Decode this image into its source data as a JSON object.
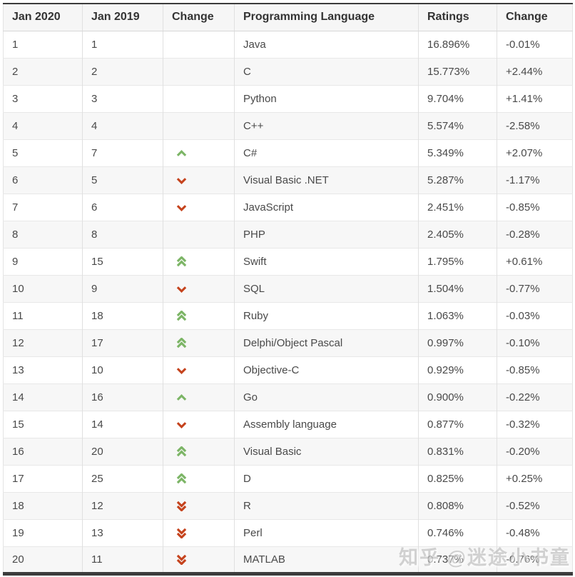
{
  "chart_data": {
    "type": "table",
    "columns": [
      "Jan 2020",
      "Jan 2019",
      "Change",
      "Programming Language",
      "Ratings",
      "Change"
    ],
    "rows": [
      {
        "jan2020": "1",
        "jan2019": "1",
        "trend": "none",
        "language": "Java",
        "rating": "16.896%",
        "change": "-0.01%"
      },
      {
        "jan2020": "2",
        "jan2019": "2",
        "trend": "none",
        "language": "C",
        "rating": "15.773%",
        "change": "+2.44%"
      },
      {
        "jan2020": "3",
        "jan2019": "3",
        "trend": "none",
        "language": "Python",
        "rating": "9.704%",
        "change": "+1.41%"
      },
      {
        "jan2020": "4",
        "jan2019": "4",
        "trend": "none",
        "language": "C++",
        "rating": "5.574%",
        "change": "-2.58%"
      },
      {
        "jan2020": "5",
        "jan2019": "7",
        "trend": "up1",
        "language": "C#",
        "rating": "5.349%",
        "change": "+2.07%"
      },
      {
        "jan2020": "6",
        "jan2019": "5",
        "trend": "down1",
        "language": "Visual Basic .NET",
        "rating": "5.287%",
        "change": "-1.17%"
      },
      {
        "jan2020": "7",
        "jan2019": "6",
        "trend": "down1",
        "language": "JavaScript",
        "rating": "2.451%",
        "change": "-0.85%"
      },
      {
        "jan2020": "8",
        "jan2019": "8",
        "trend": "none",
        "language": "PHP",
        "rating": "2.405%",
        "change": "-0.28%"
      },
      {
        "jan2020": "9",
        "jan2019": "15",
        "trend": "up2",
        "language": "Swift",
        "rating": "1.795%",
        "change": "+0.61%"
      },
      {
        "jan2020": "10",
        "jan2019": "9",
        "trend": "down1",
        "language": "SQL",
        "rating": "1.504%",
        "change": "-0.77%"
      },
      {
        "jan2020": "11",
        "jan2019": "18",
        "trend": "up2",
        "language": "Ruby",
        "rating": "1.063%",
        "change": "-0.03%"
      },
      {
        "jan2020": "12",
        "jan2019": "17",
        "trend": "up2",
        "language": "Delphi/Object Pascal",
        "rating": "0.997%",
        "change": "-0.10%"
      },
      {
        "jan2020": "13",
        "jan2019": "10",
        "trend": "down1",
        "language": "Objective-C",
        "rating": "0.929%",
        "change": "-0.85%"
      },
      {
        "jan2020": "14",
        "jan2019": "16",
        "trend": "up1",
        "language": "Go",
        "rating": "0.900%",
        "change": "-0.22%"
      },
      {
        "jan2020": "15",
        "jan2019": "14",
        "trend": "down1",
        "language": "Assembly language",
        "rating": "0.877%",
        "change": "-0.32%"
      },
      {
        "jan2020": "16",
        "jan2019": "20",
        "trend": "up2",
        "language": "Visual Basic",
        "rating": "0.831%",
        "change": "-0.20%"
      },
      {
        "jan2020": "17",
        "jan2019": "25",
        "trend": "up2",
        "language": "D",
        "rating": "0.825%",
        "change": "+0.25%"
      },
      {
        "jan2020": "18",
        "jan2019": "12",
        "trend": "down2",
        "language": "R",
        "rating": "0.808%",
        "change": "-0.52%"
      },
      {
        "jan2020": "19",
        "jan2019": "13",
        "trend": "down2",
        "language": "Perl",
        "rating": "0.746%",
        "change": "-0.48%"
      },
      {
        "jan2020": "20",
        "jan2019": "11",
        "trend": "down2",
        "language": "MATLAB",
        "rating": "0.737%",
        "change": "-0.76%"
      }
    ]
  },
  "icons": {
    "up1": "chevron-up-icon",
    "up2": "chevron-double-up-icon",
    "down1": "chevron-down-icon",
    "down2": "chevron-double-down-icon"
  },
  "colors": {
    "trend_up": "#7cb566",
    "trend_down": "#c5431d",
    "header_bg": "#f6f6f6",
    "row_alt_bg": "#f7f7f7",
    "frame_border": "#3c3c3c"
  },
  "watermark": {
    "text": "知乎 @迷途小书童"
  }
}
